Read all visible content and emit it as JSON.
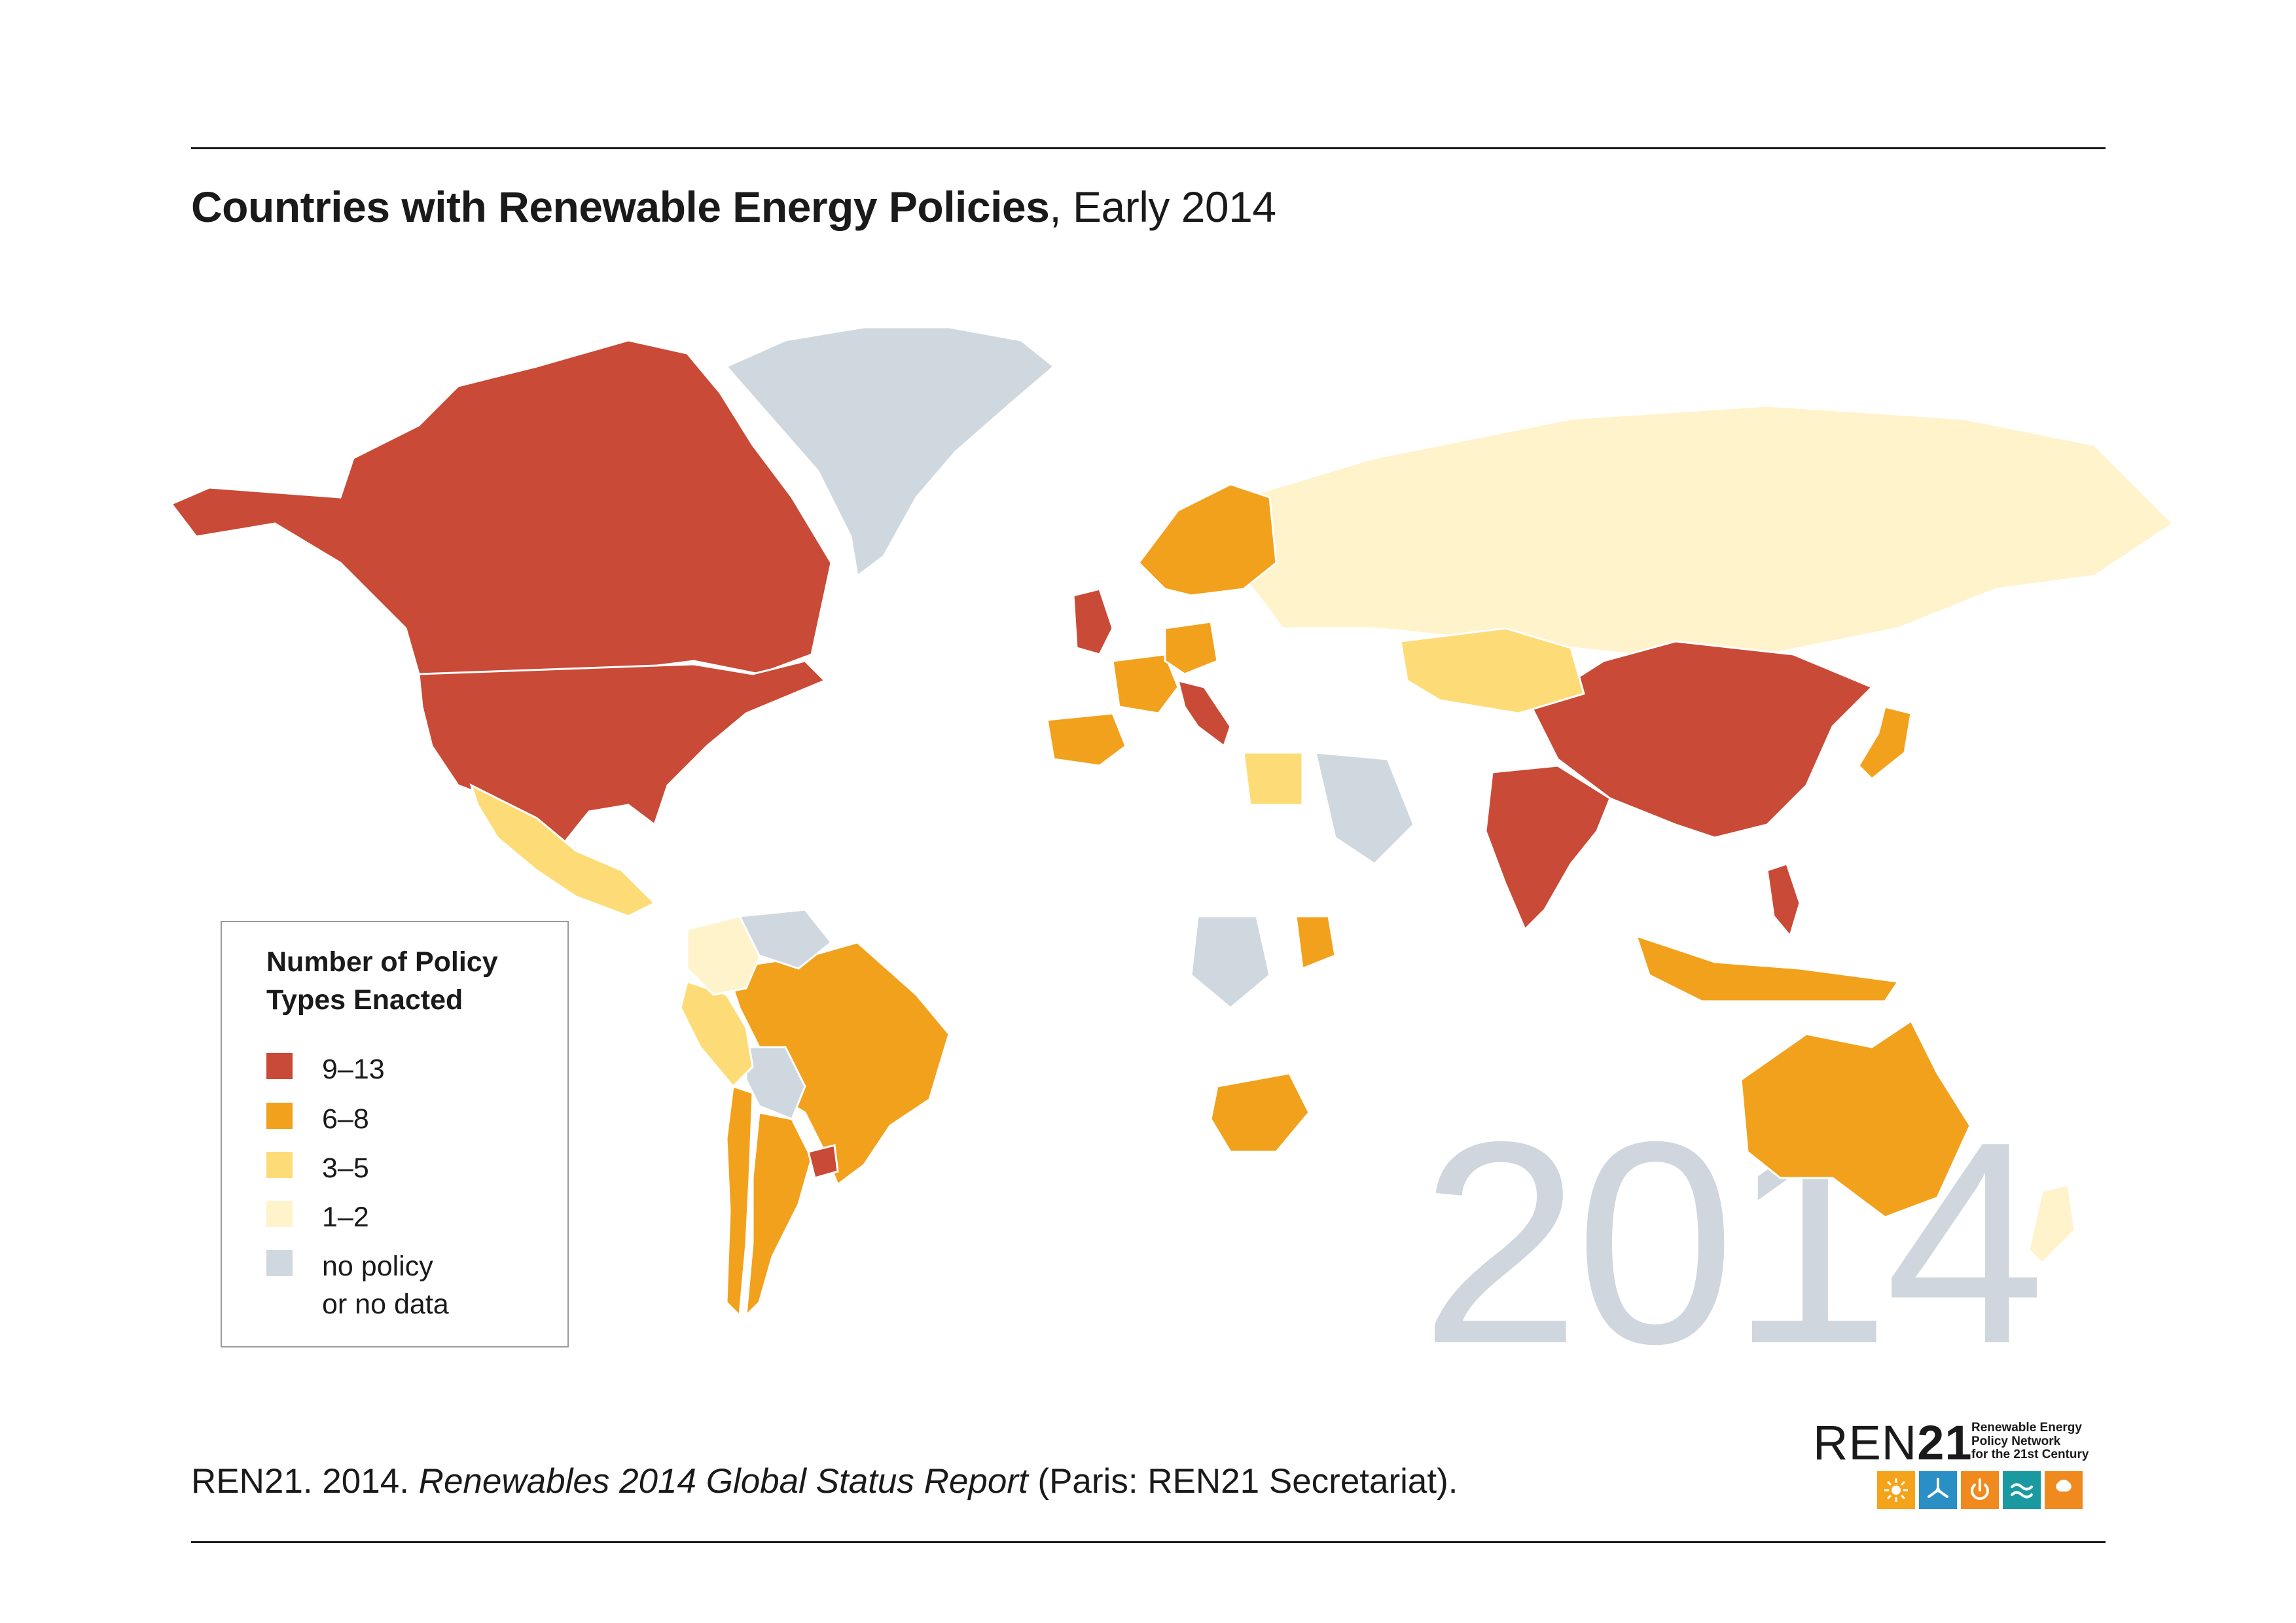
{
  "title": {
    "bold": "Countries with Renewable Energy Policies",
    "rest": ", Early 2014"
  },
  "watermark_year": "2014",
  "legend": {
    "title": "Number of Policy Types Enacted",
    "items": [
      {
        "label": "9–13",
        "color": "#c94a36"
      },
      {
        "label": "6–8",
        "color": "#f2a11c"
      },
      {
        "label": "3–5",
        "color": "#fddc78"
      },
      {
        "label": "1–2",
        "color": "#fff3cc"
      },
      {
        "label": "no policy\nor no data",
        "color": "#d0d8df"
      }
    ]
  },
  "source": {
    "prefix": "REN21. 2014. ",
    "italic": "Renewables 2014 Global Status Report",
    "suffix": " (Paris: REN21 Secretariat)."
  },
  "logo": {
    "word_a": "REN",
    "word_b": "21",
    "tagline": "Renewable Energy\nPolicy Network\nfor the 21st Century",
    "icons": [
      {
        "name": "sun-icon",
        "color": "#f5a31a"
      },
      {
        "name": "wind-turbine-icon",
        "color": "#2a8fc4"
      },
      {
        "name": "power-icon",
        "color": "#f08a1e"
      },
      {
        "name": "water-wave-icon",
        "color": "#1a9aa0"
      },
      {
        "name": "leaf-icon",
        "color": "#f08a1e"
      }
    ]
  },
  "map": {
    "regions": [
      {
        "name": "Canada",
        "category": "9–13"
      },
      {
        "name": "United States",
        "category": "9–13"
      },
      {
        "name": "Greenland",
        "category": "no policy or no data"
      },
      {
        "name": "Mexico",
        "category": "3–5"
      },
      {
        "name": "Brazil",
        "category": "6–8"
      },
      {
        "name": "Argentina",
        "category": "6–8"
      },
      {
        "name": "Chile",
        "category": "6–8"
      },
      {
        "name": "Uruguay",
        "category": "9–13"
      },
      {
        "name": "Bolivia",
        "category": "no policy or no data"
      },
      {
        "name": "Peru",
        "category": "3–5"
      },
      {
        "name": "Colombia",
        "category": "1–2"
      },
      {
        "name": "Venezuela",
        "category": "no policy or no data"
      },
      {
        "name": "Russia",
        "category": "1–2"
      },
      {
        "name": "China",
        "category": "9–13"
      },
      {
        "name": "India",
        "category": "9–13"
      },
      {
        "name": "Japan",
        "category": "6–8"
      },
      {
        "name": "Philippines",
        "category": "9–13"
      },
      {
        "name": "Indonesia",
        "category": "6–8"
      },
      {
        "name": "Australia",
        "category": "6–8"
      },
      {
        "name": "New Zealand",
        "category": "1–2"
      },
      {
        "name": "United Kingdom",
        "category": "9–13"
      },
      {
        "name": "Italy",
        "category": "9–13"
      },
      {
        "name": "Spain",
        "category": "6–8"
      },
      {
        "name": "France",
        "category": "6–8"
      },
      {
        "name": "Germany",
        "category": "6–8"
      },
      {
        "name": "Scandinavia",
        "category": "6–8"
      },
      {
        "name": "South Africa",
        "category": "6–8"
      },
      {
        "name": "Saudi Arabia",
        "category": "no policy or no data"
      },
      {
        "name": "Kazakhstan",
        "category": "3–5"
      },
      {
        "name": "Egypt",
        "category": "3–5"
      },
      {
        "name": "DR Congo",
        "category": "no policy or no data"
      },
      {
        "name": "Kenya",
        "category": "6–8"
      }
    ]
  }
}
